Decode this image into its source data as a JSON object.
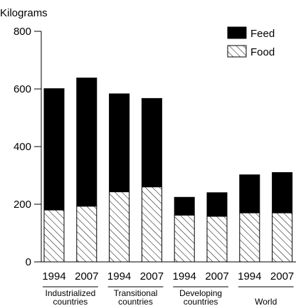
{
  "chart_data": {
    "type": "bar",
    "stacked": true,
    "ylabel": "Kilograms",
    "ylim": [
      0,
      800
    ],
    "yticks": [
      0,
      200,
      400,
      600,
      800
    ],
    "grid": false,
    "legend_position": "top-right",
    "categories": [
      "1994",
      "2007",
      "1994",
      "2007",
      "1994",
      "2007",
      "1994",
      "2007"
    ],
    "groups": [
      {
        "label_lines": [
          "Industrialized",
          "countries"
        ],
        "indices": [
          0,
          1
        ]
      },
      {
        "label_lines": [
          "Transitional",
          "countries"
        ],
        "indices": [
          2,
          3
        ]
      },
      {
        "label_lines": [
          "Developing",
          "countries"
        ],
        "indices": [
          4,
          5
        ]
      },
      {
        "label_lines": [
          "World"
        ],
        "indices": [
          6,
          7
        ]
      }
    ],
    "series": [
      {
        "name": "Food",
        "fill": "hatched",
        "values": [
          180,
          193,
          243,
          260,
          162,
          158,
          170,
          170
        ]
      },
      {
        "name": "Feed",
        "fill": "#000000",
        "values": [
          421,
          445,
          340,
          307,
          62,
          82,
          132,
          140
        ]
      }
    ],
    "legend_order": [
      "Feed",
      "Food"
    ]
  }
}
